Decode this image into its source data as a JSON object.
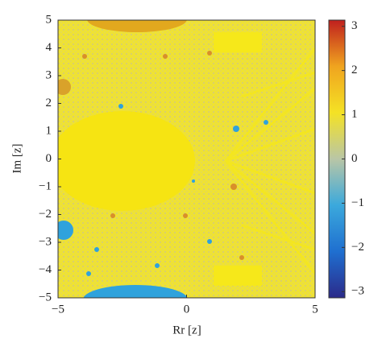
{
  "chart_data": {
    "type": "heatmap",
    "xlabel": "Rr [z]",
    "ylabel": "Im [z]",
    "xlim": [
      -5,
      5
    ],
    "ylim": [
      -5,
      5
    ],
    "xticks": [
      {
        "value": -5,
        "label": "−5"
      },
      0,
      5
    ],
    "yticks": [
      {
        "value": -5,
        "label": "−5"
      },
      {
        "value": -4,
        "label": "−4"
      },
      {
        "value": -3,
        "label": "−3"
      },
      {
        "value": -2,
        "label": "−2"
      },
      {
        "value": -1,
        "label": "−1"
      },
      0,
      1,
      2,
      3,
      4,
      5
    ],
    "colorbar": {
      "clim": [
        -3.14,
        3.14
      ],
      "ticks": [
        {
          "value": -3,
          "label": "−3"
        },
        {
          "value": -2,
          "label": "−2"
        },
        {
          "value": -1,
          "label": "−1"
        },
        0,
        1,
        2,
        3
      ],
      "colormap": [
        "#2b2a8a",
        "#1f6fd0",
        "#3ba9dc",
        "#b9c6a6",
        "#f4e225",
        "#f0a41f",
        "#c0201e"
      ]
    }
  }
}
